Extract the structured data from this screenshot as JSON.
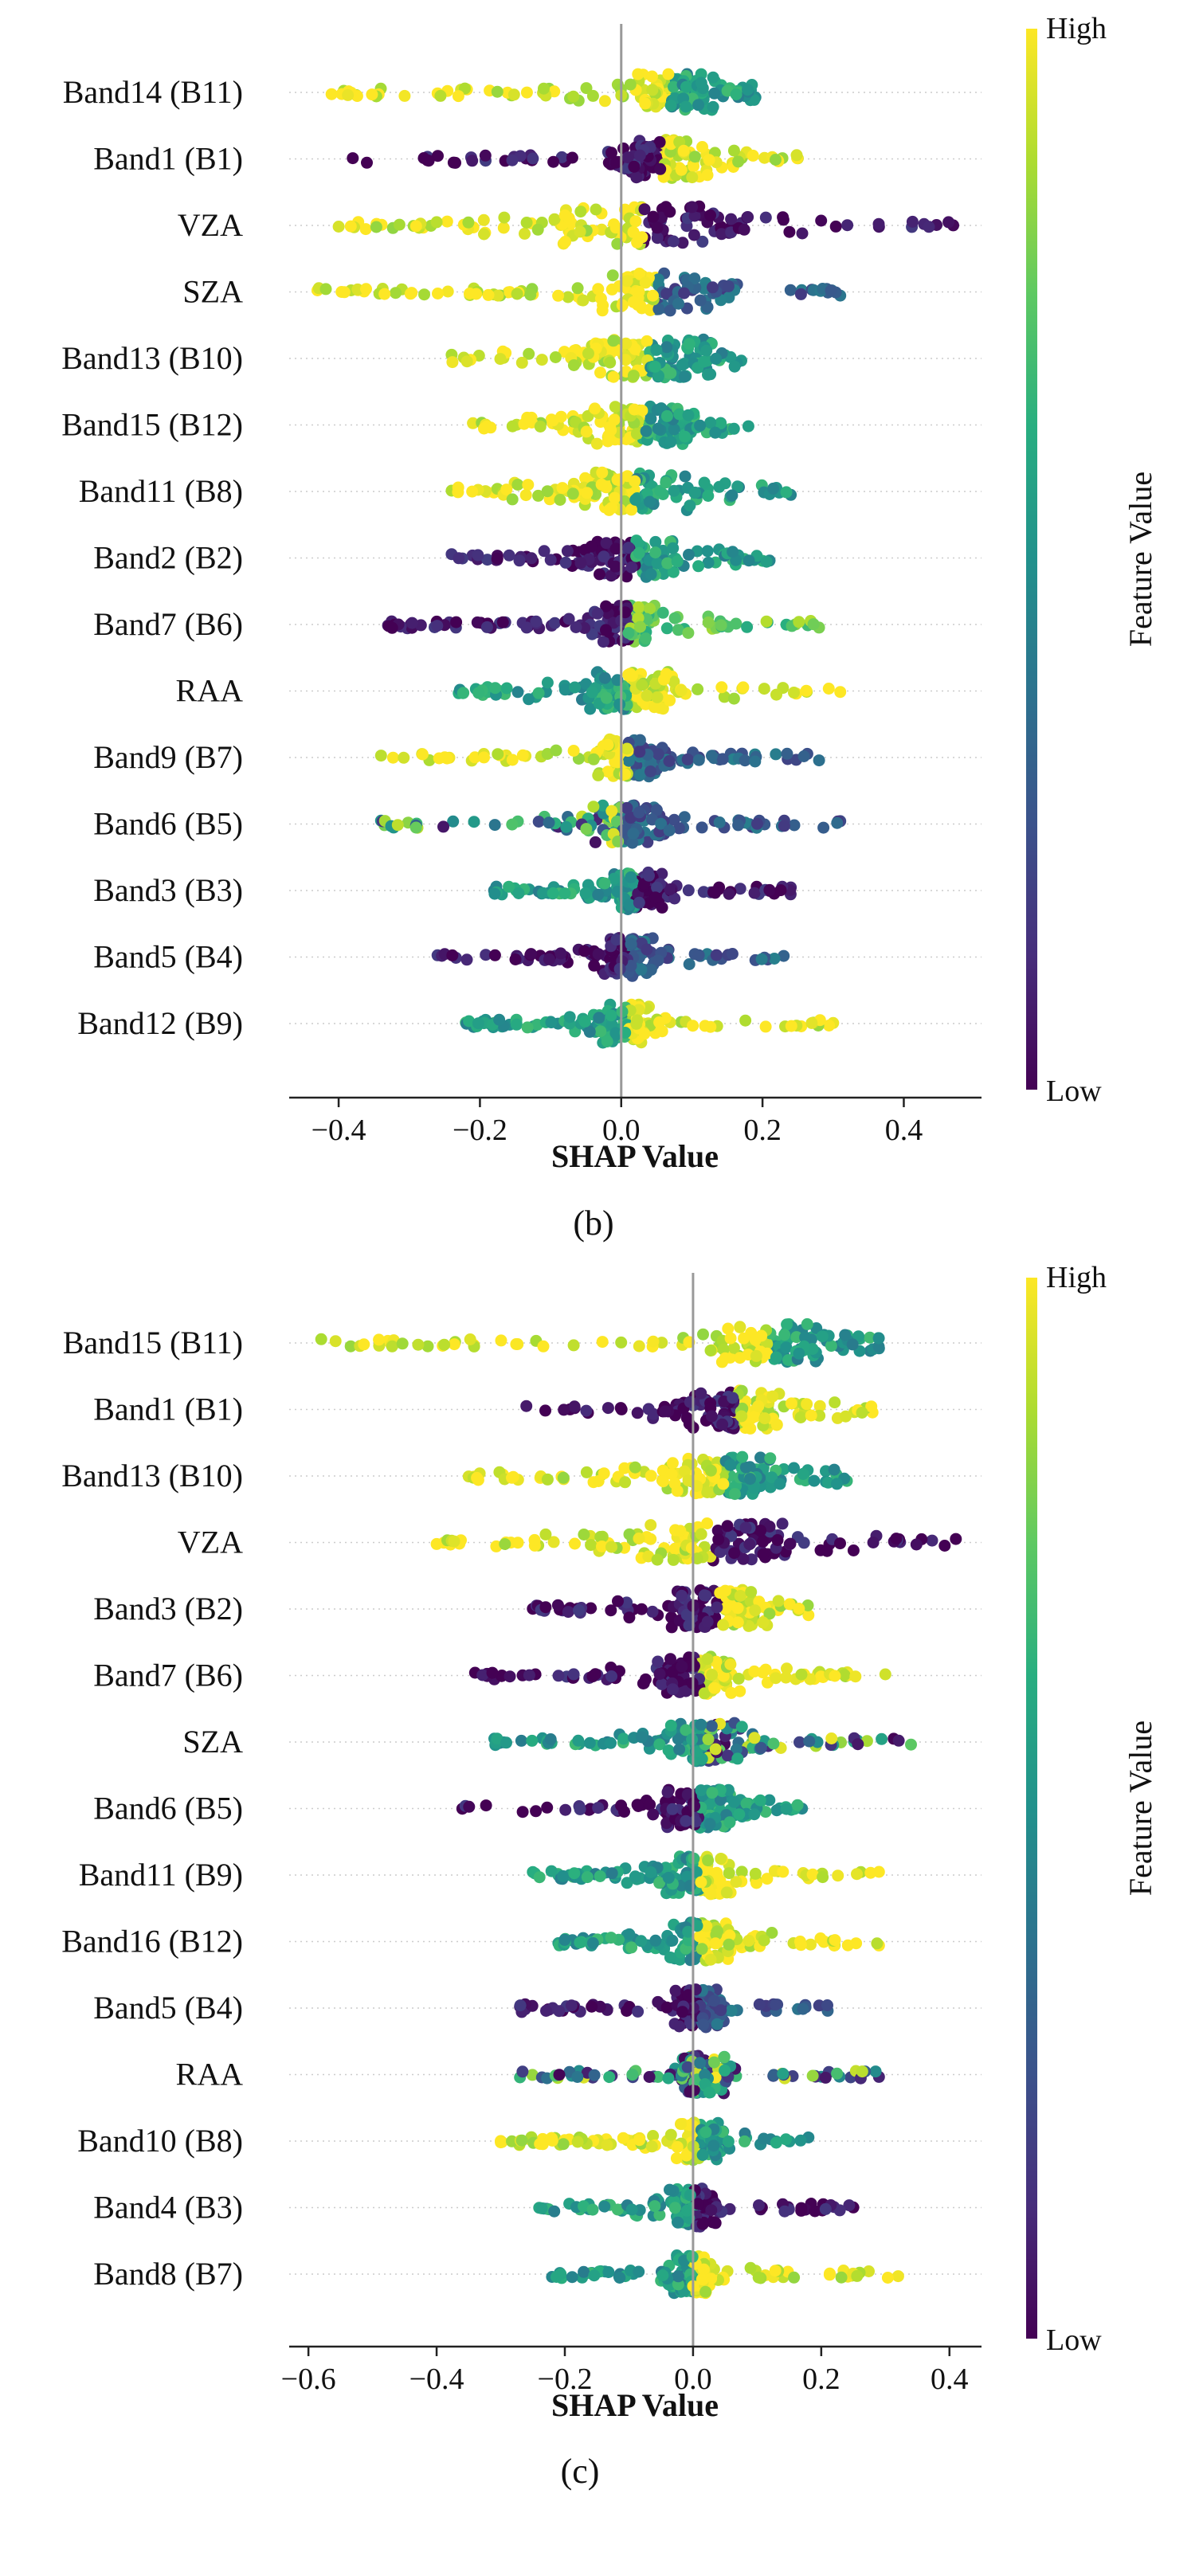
{
  "figure": {
    "panels": [
      {
        "caption": "(b)",
        "colorbar": {
          "high_label": "High",
          "low_label": "Low",
          "title": "Feature Value"
        }
      },
      {
        "caption": "(c)",
        "colorbar": {
          "high_label": "High",
          "low_label": "Low",
          "title": "Feature Value"
        }
      }
    ]
  },
  "chart_data": [
    {
      "type": "scatter",
      "subtype": "shap-beeswarm",
      "panel": "(b)",
      "xlabel": "SHAP Value",
      "ylabel": "",
      "xlim": [
        -0.47,
        0.51
      ],
      "xticks": [
        -0.4,
        -0.2,
        0.0,
        0.2,
        0.4
      ],
      "xtick_labels": [
        "−0.4",
        "−0.2",
        "0.0",
        "0.2",
        "0.4"
      ],
      "zero_line": 0.0,
      "colorbar": {
        "title": "Feature Value",
        "high": "High",
        "low": "Low",
        "colormap": "viridis"
      },
      "features": [
        {
          "name": "Band14 (B11)",
          "min": -0.41,
          "max": 0.19,
          "center": 0.07,
          "spread": 0.05,
          "neg_color": "high",
          "pos_color": "mid"
        },
        {
          "name": "Band1 (B1)",
          "min": -0.38,
          "max": 0.25,
          "center": 0.06,
          "spread": 0.05,
          "neg_color": "low",
          "pos_color": "high"
        },
        {
          "name": "VZA",
          "min": -0.4,
          "max": 0.47,
          "center": 0.03,
          "spread": 0.09,
          "neg_color": "high",
          "pos_color": "low"
        },
        {
          "name": "SZA",
          "min": -0.43,
          "max": 0.31,
          "center": 0.05,
          "spread": 0.06,
          "neg_color": "high",
          "pos_color": "mid-low"
        },
        {
          "name": "Band13 (B10)",
          "min": -0.24,
          "max": 0.17,
          "center": 0.04,
          "spread": 0.07,
          "neg_color": "high",
          "pos_color": "mid"
        },
        {
          "name": "Band15 (B12)",
          "min": -0.21,
          "max": 0.18,
          "center": 0.03,
          "spread": 0.06,
          "neg_color": "high",
          "pos_color": "mid"
        },
        {
          "name": "Band11 (B8)",
          "min": -0.24,
          "max": 0.24,
          "center": 0.02,
          "spread": 0.06,
          "neg_color": "high",
          "pos_color": "mid"
        },
        {
          "name": "Band2 (B2)",
          "min": -0.24,
          "max": 0.21,
          "center": 0.02,
          "spread": 0.05,
          "neg_color": "low",
          "pos_color": "mid"
        },
        {
          "name": "Band7 (B6)",
          "min": -0.33,
          "max": 0.28,
          "center": 0.01,
          "spread": 0.04,
          "neg_color": "low",
          "pos_color": "mid-high"
        },
        {
          "name": "RAA",
          "min": -0.23,
          "max": 0.31,
          "center": 0.01,
          "spread": 0.05,
          "neg_color": "mid",
          "pos_color": "high"
        },
        {
          "name": "Band9 (B7)",
          "min": -0.34,
          "max": 0.28,
          "center": 0.01,
          "spread": 0.04,
          "neg_color": "high",
          "pos_color": "mid-low"
        },
        {
          "name": "Band6 (B5)",
          "min": -0.34,
          "max": 0.31,
          "center": 0.01,
          "spread": 0.04,
          "neg_color": "mixed",
          "pos_color": "mid-low"
        },
        {
          "name": "Band3 (B3)",
          "min": -0.18,
          "max": 0.24,
          "center": 0.02,
          "spread": 0.03,
          "neg_color": "mid",
          "pos_color": "low"
        },
        {
          "name": "Band5 (B4)",
          "min": -0.26,
          "max": 0.23,
          "center": 0.01,
          "spread": 0.03,
          "neg_color": "low",
          "pos_color": "mid-low"
        },
        {
          "name": "Band12 (B9)",
          "min": -0.22,
          "max": 0.3,
          "center": 0.01,
          "spread": 0.03,
          "neg_color": "mid",
          "pos_color": "high"
        }
      ]
    },
    {
      "type": "scatter",
      "subtype": "shap-beeswarm",
      "panel": "(c)",
      "xlabel": "SHAP Value",
      "ylabel": "",
      "xlim": [
        -0.63,
        0.45
      ],
      "xticks": [
        -0.6,
        -0.4,
        -0.2,
        0.0,
        0.2,
        0.4
      ],
      "xtick_labels": [
        "−0.6",
        "−0.4",
        "−0.2",
        "0.0",
        "0.2",
        "0.4"
      ],
      "zero_line": 0.0,
      "colorbar": {
        "title": "Feature Value",
        "high": "High",
        "low": "Low",
        "colormap": "viridis"
      },
      "features": [
        {
          "name": "Band15 (B11)",
          "min": -0.58,
          "max": 0.29,
          "center": 0.12,
          "spread": 0.06,
          "neg_color": "high",
          "pos_color": "mid"
        },
        {
          "name": "Band1 (B1)",
          "min": -0.26,
          "max": 0.28,
          "center": 0.07,
          "spread": 0.06,
          "neg_color": "low",
          "pos_color": "high"
        },
        {
          "name": "Band13 (B10)",
          "min": -0.35,
          "max": 0.24,
          "center": 0.05,
          "spread": 0.07,
          "neg_color": "high",
          "pos_color": "mid"
        },
        {
          "name": "VZA",
          "min": -0.4,
          "max": 0.41,
          "center": 0.03,
          "spread": 0.09,
          "neg_color": "high",
          "pos_color": "low"
        },
        {
          "name": "Band3 (B2)",
          "min": -0.25,
          "max": 0.18,
          "center": 0.04,
          "spread": 0.06,
          "neg_color": "low",
          "pos_color": "high"
        },
        {
          "name": "Band7 (B6)",
          "min": -0.34,
          "max": 0.3,
          "center": 0.01,
          "spread": 0.05,
          "neg_color": "low",
          "pos_color": "high"
        },
        {
          "name": "SZA",
          "min": -0.31,
          "max": 0.34,
          "center": 0.02,
          "spread": 0.05,
          "neg_color": "mid",
          "pos_color": "mixed"
        },
        {
          "name": "Band6 (B5)",
          "min": -0.36,
          "max": 0.17,
          "center": 0.01,
          "spread": 0.04,
          "neg_color": "low",
          "pos_color": "mid"
        },
        {
          "name": "Band11 (B9)",
          "min": -0.25,
          "max": 0.29,
          "center": 0.01,
          "spread": 0.04,
          "neg_color": "mid",
          "pos_color": "high"
        },
        {
          "name": "Band16 (B12)",
          "min": -0.21,
          "max": 0.29,
          "center": 0.01,
          "spread": 0.04,
          "neg_color": "mid",
          "pos_color": "high"
        },
        {
          "name": "Band5 (B4)",
          "min": -0.27,
          "max": 0.21,
          "center": 0.01,
          "spread": 0.03,
          "neg_color": "low",
          "pos_color": "mid-low"
        },
        {
          "name": "RAA",
          "min": -0.27,
          "max": 0.29,
          "center": 0.01,
          "spread": 0.03,
          "neg_color": "mixed",
          "pos_color": "mixed"
        },
        {
          "name": "Band10 (B8)",
          "min": -0.3,
          "max": 0.18,
          "center": 0.01,
          "spread": 0.03,
          "neg_color": "high",
          "pos_color": "mid"
        },
        {
          "name": "Band4 (B3)",
          "min": -0.24,
          "max": 0.25,
          "center": 0.0,
          "spread": 0.03,
          "neg_color": "mid",
          "pos_color": "low"
        },
        {
          "name": "Band8 (B7)",
          "min": -0.22,
          "max": 0.32,
          "center": 0.0,
          "spread": 0.03,
          "neg_color": "mid",
          "pos_color": "high"
        }
      ]
    }
  ]
}
